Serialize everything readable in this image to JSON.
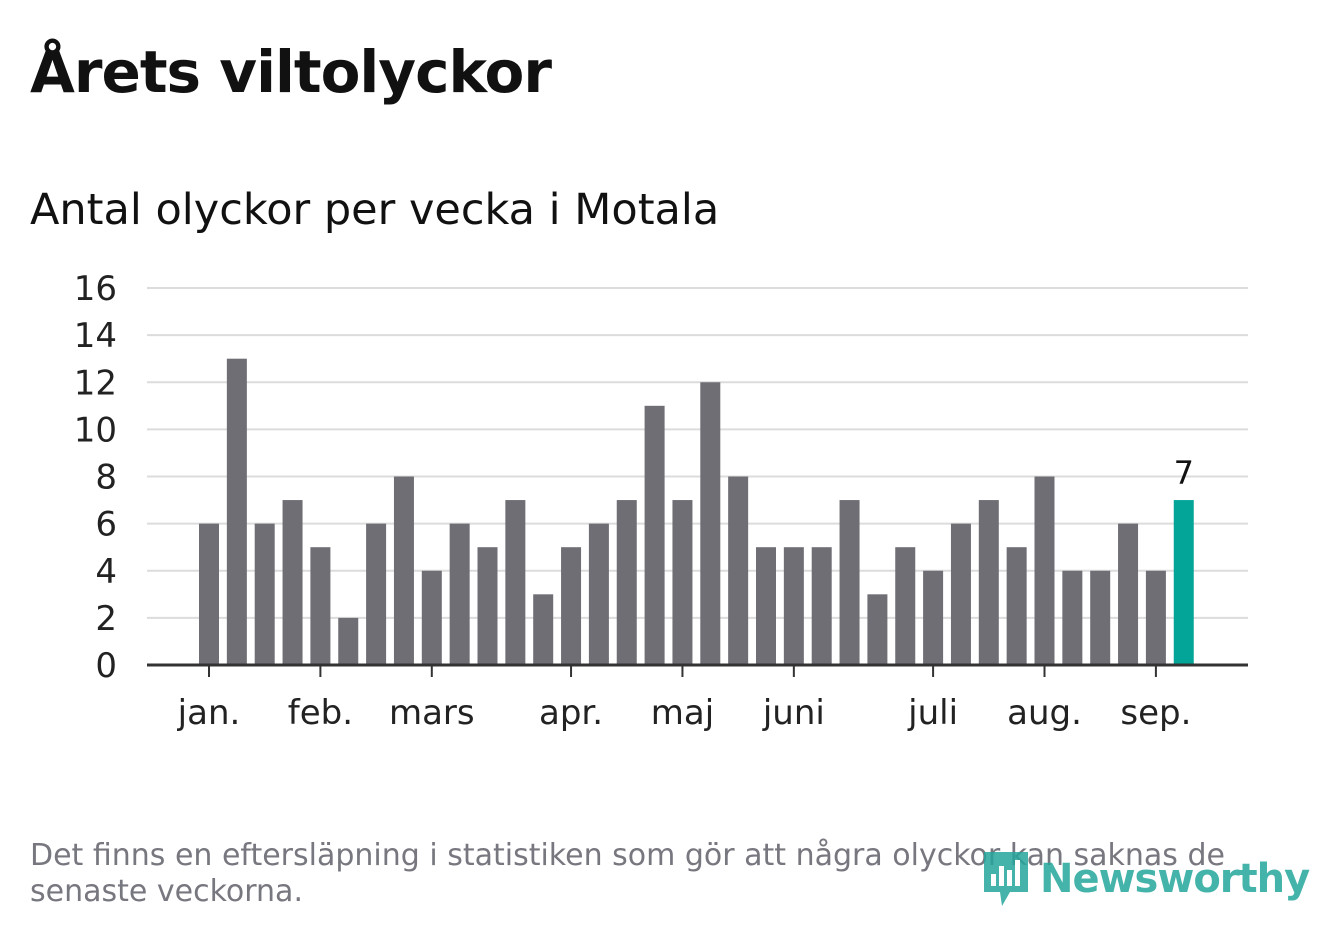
{
  "title": "Årets viltolyckor",
  "subtitle": "Antal olyckor per vecka i Motala",
  "footnote": "Det finns en eftersläpning i statistiken som gör att några olyckor kan saknas de senaste veckorna.",
  "logo": {
    "text": "Newsworthy",
    "icon": "bar-chart-speech-bubble-icon"
  },
  "colors": {
    "bar": "#6f6e74",
    "highlight": "#04a599",
    "grid": "#dcdcdc",
    "axis": "#333333",
    "text": "#222222"
  },
  "chart_data": {
    "type": "bar",
    "title": "Antal olyckor per vecka i Motala",
    "xlabel": "",
    "ylabel": "",
    "ylim": [
      0,
      16
    ],
    "yticks": [
      0,
      2,
      4,
      6,
      8,
      10,
      12,
      14,
      16
    ],
    "grid": true,
    "values": [
      6,
      13,
      6,
      7,
      5,
      2,
      6,
      8,
      4,
      6,
      5,
      7,
      3,
      5,
      6,
      7,
      11,
      7,
      12,
      8,
      5,
      5,
      5,
      7,
      3,
      5,
      4,
      6,
      7,
      5,
      8,
      4,
      4,
      6,
      4,
      7
    ],
    "highlight_last": true,
    "last_value_label": "7",
    "month_labels": [
      {
        "label": "jan.",
        "week_index": 0
      },
      {
        "label": "feb.",
        "week_index": 4
      },
      {
        "label": "mars",
        "week_index": 8
      },
      {
        "label": "apr.",
        "week_index": 13
      },
      {
        "label": "maj",
        "week_index": 17
      },
      {
        "label": "juni",
        "week_index": 21
      },
      {
        "label": "juli",
        "week_index": 26
      },
      {
        "label": "aug.",
        "week_index": 30
      },
      {
        "label": "sep.",
        "week_index": 34
      }
    ]
  }
}
